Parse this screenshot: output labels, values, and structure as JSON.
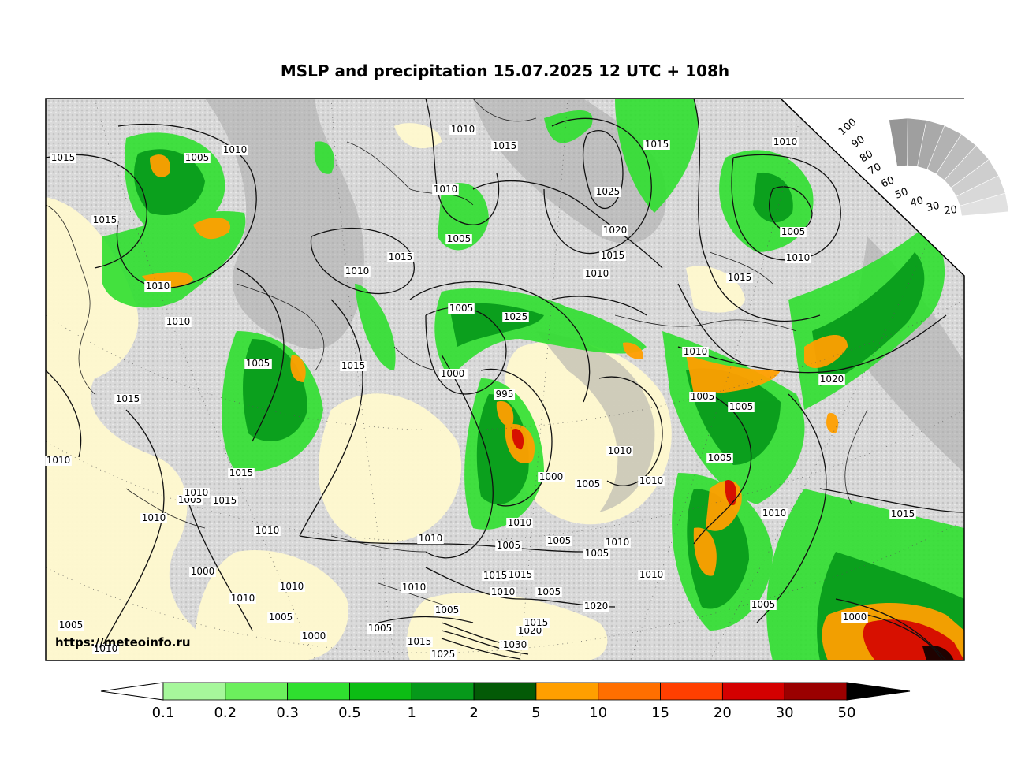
{
  "title": "MSLP and precipitation 15.07.2025 12 UTC + 108h",
  "watermark": "https://meteoinfo.ru",
  "cloud_scale": {
    "labels": [
      "100",
      "90",
      "80",
      "70",
      "60",
      "50",
      "40",
      "30",
      "20"
    ]
  },
  "legend": {
    "ticks": [
      "0.1",
      "0.2",
      "0.3",
      "0.5",
      "1",
      "2",
      "5",
      "10",
      "15",
      "20",
      "30",
      "50"
    ],
    "colors": [
      "#a6f79b",
      "#6cef5d",
      "#2fdf2f",
      "#0cbd14",
      "#06991a",
      "#035a06",
      "#ff9f00",
      "#ff6f00",
      "#ff3f00",
      "#d40000",
      "#9a0000",
      "#000000"
    ]
  },
  "pressure_labels": [
    "1010",
    "1015",
    "1020",
    "1025",
    "1005",
    "1000",
    "995",
    "1030",
    "1020",
    "1005",
    "1010",
    "1015",
    "1010",
    "1005",
    "1010",
    "1015",
    "1010",
    "1010",
    "1005",
    "1015",
    "1015",
    "1010",
    "1005",
    "1015",
    "1010",
    "1015",
    "1015",
    "1005",
    "1025",
    "1020",
    "1015",
    "1010",
    "1005",
    "1000",
    "1000",
    "1010",
    "1005",
    "1005",
    "1010",
    "1015",
    "1005",
    "1010",
    "1000",
    "1005",
    "1010",
    "1005",
    "1010",
    "1010",
    "1005",
    "1005",
    "1010",
    "1015",
    "1010",
    "1000",
    "1005",
    "1010",
    "1010",
    "1010",
    "1005",
    "1000",
    "1005",
    "1010",
    "1005",
    "1015",
    "1015",
    "1020",
    "1030",
    "1025",
    "1020",
    "1010",
    "1005",
    "1015",
    "1010",
    "1000",
    "1015",
    "1010",
    "1010",
    "1005",
    "1010",
    "1015"
  ]
}
